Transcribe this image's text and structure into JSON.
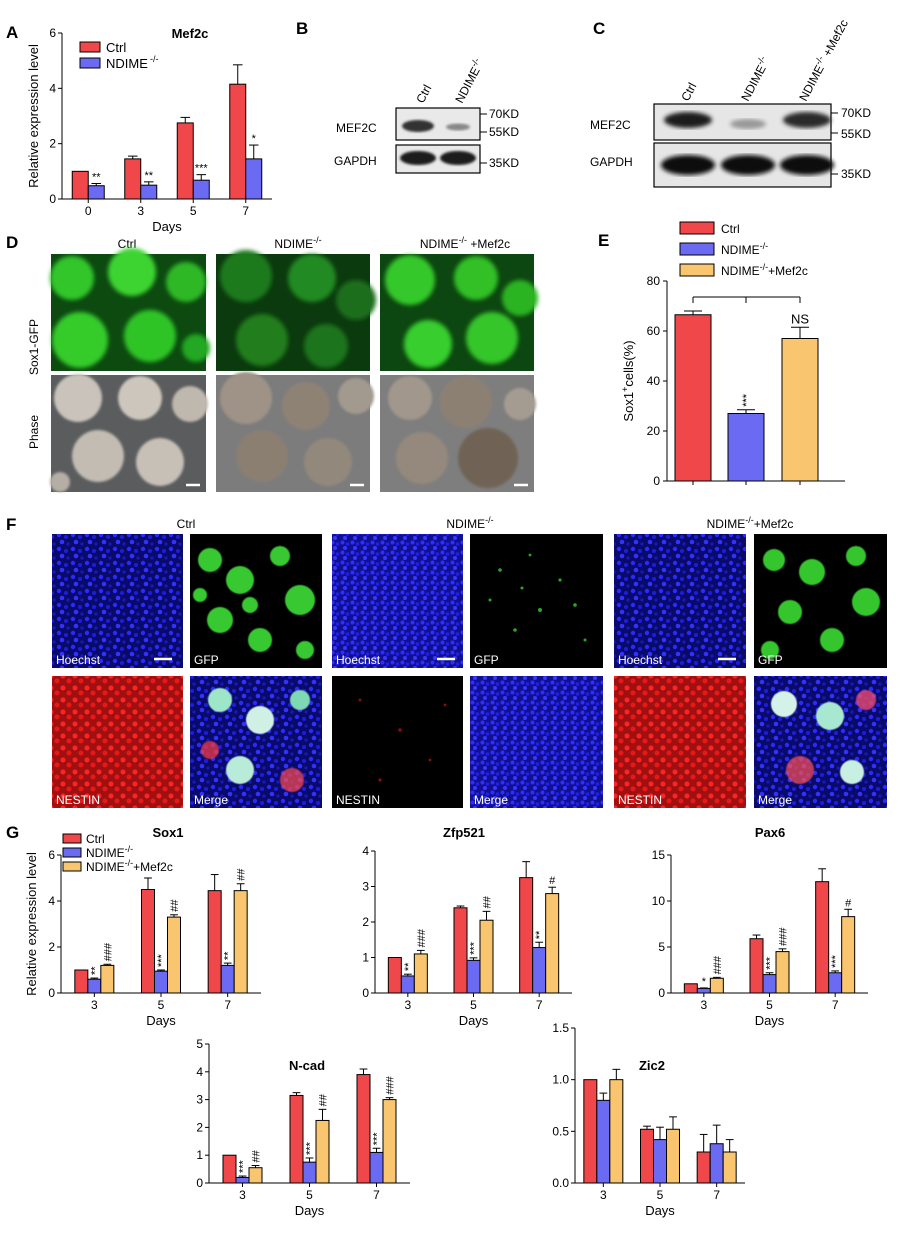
{
  "panel_letters": [
    "A",
    "B",
    "C",
    "D",
    "E",
    "F",
    "G"
  ],
  "colors": {
    "ctrl": "#f0474a",
    "ndime": "#6a6af2",
    "mef2c": "#f9c56e",
    "gfp": "#2fc42a",
    "hoechst": "#1414c8",
    "nestin": "#e01616"
  },
  "legend": {
    "ctrl": "Ctrl",
    "ndime": "NDIME",
    "ndime_sup": "-/-",
    "mef2c_suffix": "+Mef2c"
  },
  "units": {
    "days": "Days",
    "rel": "Relative expression level",
    "sox1_prefix": "Sox1",
    "sox1_sup": "+",
    "sox1_suffix": "cells(%)"
  },
  "panelB": {
    "lanes": [
      "Ctrl",
      "NDIME-/-"
    ],
    "rows": [
      "MEF2C",
      "GAPDH"
    ],
    "markers": [
      "70KD",
      "55KD",
      "35KD"
    ]
  },
  "panelC": {
    "lanes": [
      "Ctrl",
      "NDIME-/-",
      "NDIME-/- +Mef2c"
    ],
    "rows": [
      "MEF2C",
      "GAPDH"
    ],
    "markers": [
      "70KD",
      "55KD",
      "35KD"
    ]
  },
  "panelD": {
    "columns": [
      "Ctrl",
      "NDIME-/-",
      "NDIME-/- +Mef2c"
    ],
    "rows": [
      "Sox1-GFP",
      "Phase"
    ]
  },
  "panelF": {
    "groups": [
      "Ctrl",
      "NDIME-/-",
      "NDIME-/-+Mef2c"
    ],
    "tiles": [
      "Hoechst",
      "GFP",
      "NESTIN",
      "Merge"
    ]
  },
  "chart_data": [
    {
      "id": "A",
      "type": "bar",
      "title": "Mef2c",
      "categories": [
        "0",
        "3",
        "5",
        "7"
      ],
      "xlabel": "Days",
      "ylabel": "Relative expression level",
      "ylim": [
        0,
        6
      ],
      "yticks": [
        0,
        2,
        4,
        6
      ],
      "series": [
        {
          "name": "Ctrl",
          "values": [
            1.0,
            1.45,
            2.75,
            4.15
          ],
          "err": [
            0,
            0.1,
            0.2,
            0.7
          ]
        },
        {
          "name": "NDIME-/-",
          "values": [
            0.48,
            0.5,
            0.68,
            1.45
          ],
          "err": [
            0.08,
            0.12,
            0.2,
            0.5
          ]
        }
      ],
      "annotations": [
        [
          "",
          "**"
        ],
        [
          "",
          "**"
        ],
        [
          "",
          "***"
        ],
        [
          "",
          "*"
        ]
      ]
    },
    {
      "id": "E",
      "type": "bar",
      "title": "",
      "categories": [
        "Ctrl",
        "NDIME-/-",
        "NDIME-/-+Mef2c"
      ],
      "xlabel": "",
      "ylabel": "Sox1+cells(%)",
      "ylim": [
        0,
        80
      ],
      "yticks": [
        0,
        20,
        40,
        60,
        80
      ],
      "series": [
        {
          "name": "Sox1+",
          "values": [
            66.5,
            27,
            57
          ],
          "err": [
            1.5,
            1.5,
            4.5
          ]
        }
      ],
      "annotations": [
        "",
        "***",
        "NS"
      ]
    },
    {
      "id": "Sox1",
      "type": "bar",
      "title": "Sox1",
      "categories": [
        "3",
        "5",
        "7"
      ],
      "xlabel": "Days",
      "ylabel": "Relative expression level",
      "ylim": [
        0,
        6
      ],
      "yticks": [
        0,
        2,
        4,
        6
      ],
      "series": [
        {
          "name": "Ctrl",
          "values": [
            1.0,
            4.5,
            4.45
          ],
          "err": [
            0,
            0.5,
            0.7
          ]
        },
        {
          "name": "NDIME-/-",
          "values": [
            0.6,
            0.95,
            1.2
          ],
          "err": [
            0.05,
            0.05,
            0.1
          ]
        },
        {
          "name": "NDIME-/-+Mef2c",
          "values": [
            1.2,
            3.3,
            4.45
          ],
          "err": [
            0.05,
            0.1,
            0.3
          ]
        }
      ],
      "annotations": [
        [
          "",
          "**",
          "###"
        ],
        [
          "",
          "***",
          "##"
        ],
        [
          "",
          "**",
          "##"
        ]
      ]
    },
    {
      "id": "Zfp521",
      "type": "bar",
      "title": "Zfp521",
      "categories": [
        "3",
        "5",
        "7"
      ],
      "xlabel": "Days",
      "ylabel": "",
      "ylim": [
        0,
        4
      ],
      "yticks": [
        0,
        1,
        2,
        3,
        4
      ],
      "series": [
        {
          "name": "Ctrl",
          "values": [
            1.0,
            2.4,
            3.25
          ],
          "err": [
            0,
            0.05,
            0.45
          ]
        },
        {
          "name": "NDIME-/-",
          "values": [
            0.48,
            0.92,
            1.28
          ],
          "err": [
            0.05,
            0.07,
            0.15
          ]
        },
        {
          "name": "NDIME-/-+Mef2c",
          "values": [
            1.1,
            2.05,
            2.8
          ],
          "err": [
            0.1,
            0.25,
            0.18
          ]
        }
      ],
      "annotations": [
        [
          "",
          "**",
          "###"
        ],
        [
          "",
          "***",
          "##"
        ],
        [
          "",
          "**",
          "#"
        ]
      ]
    },
    {
      "id": "Pax6",
      "type": "bar",
      "title": "Pax6",
      "categories": [
        "3",
        "5",
        "7"
      ],
      "xlabel": "Days",
      "ylabel": "",
      "ylim": [
        0,
        15
      ],
      "yticks": [
        0,
        5,
        10,
        15
      ],
      "series": [
        {
          "name": "Ctrl",
          "values": [
            1.0,
            5.9,
            12.1
          ],
          "err": [
            0,
            0.4,
            1.4
          ]
        },
        {
          "name": "NDIME-/-",
          "values": [
            0.5,
            2.0,
            2.2
          ],
          "err": [
            0.05,
            0.2,
            0.2
          ]
        },
        {
          "name": "NDIME-/-+Mef2c",
          "values": [
            1.6,
            4.5,
            8.3
          ],
          "err": [
            0.1,
            0.3,
            0.8
          ]
        }
      ],
      "annotations": [
        [
          "",
          "*",
          "###"
        ],
        [
          "",
          "***",
          "###"
        ],
        [
          "",
          "***",
          "#"
        ]
      ]
    },
    {
      "id": "N-cad",
      "type": "bar",
      "title": "N-cad",
      "categories": [
        "3",
        "5",
        "7"
      ],
      "xlabel": "Days",
      "ylabel": "",
      "ylim": [
        0,
        5
      ],
      "yticks": [
        0,
        1,
        2,
        3,
        4,
        5
      ],
      "series": [
        {
          "name": "Ctrl",
          "values": [
            1.0,
            3.15,
            3.9
          ],
          "err": [
            0,
            0.1,
            0.2
          ]
        },
        {
          "name": "NDIME-/-",
          "values": [
            0.2,
            0.75,
            1.1
          ],
          "err": [
            0.05,
            0.15,
            0.15
          ]
        },
        {
          "name": "NDIME-/-+Mef2c",
          "values": [
            0.55,
            2.25,
            3.0
          ],
          "err": [
            0.08,
            0.4,
            0.07
          ]
        }
      ],
      "annotations": [
        [
          "",
          "***",
          "##"
        ],
        [
          "",
          "***",
          "##"
        ],
        [
          "",
          "***",
          "###"
        ]
      ]
    },
    {
      "id": "Zic2",
      "type": "bar",
      "title": "Zic2",
      "categories": [
        "3",
        "5",
        "7"
      ],
      "xlabel": "Days",
      "ylabel": "",
      "ylim": [
        0,
        1.5
      ],
      "yticks": [
        0.0,
        0.5,
        1.0,
        1.5
      ],
      "series": [
        {
          "name": "Ctrl",
          "values": [
            1.0,
            0.52,
            0.3
          ],
          "err": [
            0,
            0.03,
            0.17
          ]
        },
        {
          "name": "NDIME-/-",
          "values": [
            0.8,
            0.42,
            0.38
          ],
          "err": [
            0.07,
            0.12,
            0.18
          ]
        },
        {
          "name": "NDIME-/-+Mef2c",
          "values": [
            1.0,
            0.52,
            0.3
          ],
          "err": [
            0.1,
            0.12,
            0.12
          ]
        }
      ],
      "annotations": [
        [
          "",
          "",
          ""
        ],
        [
          "",
          "",
          ""
        ],
        [
          "",
          "",
          ""
        ]
      ]
    }
  ]
}
